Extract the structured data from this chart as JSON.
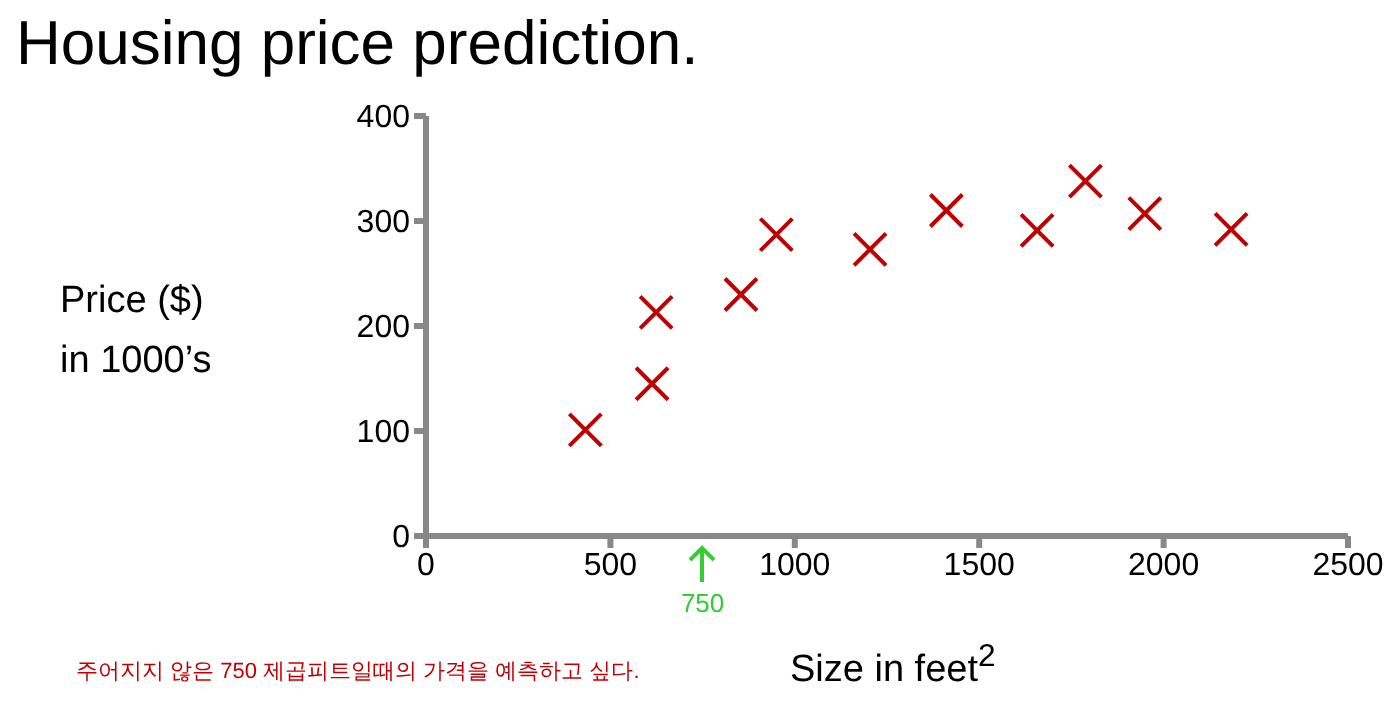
{
  "chart_data": {
    "type": "scatter",
    "title": "Housing price prediction.",
    "xlabel": "Size in feet$^{2}$",
    "ylabel": "Price ($)\nin 1000’s",
    "x": [
      432,
      613,
      624,
      854,
      950,
      1204,
      1411,
      1657,
      1788,
      1949,
      2183
    ],
    "series": [
      {
        "color": "#c00000",
        "values": [
          101,
          145,
          213,
          230,
          287,
          273,
          310,
          291,
          338,
          307,
          292
        ]
      }
    ],
    "xlim": [
      0,
      2500
    ],
    "xticks": [
      0,
      500,
      1000,
      1500,
      2000,
      2500
    ],
    "ylim": [
      0,
      400
    ],
    "yticks": [
      0,
      100,
      200,
      300,
      400
    ],
    "marker": "cross",
    "grid": false,
    "legend": false,
    "annotations": [
      "750",
      "주어지지 않은 750 제곱피트일때의 가격을 예측하고 싶다."
    ]
  }
}
